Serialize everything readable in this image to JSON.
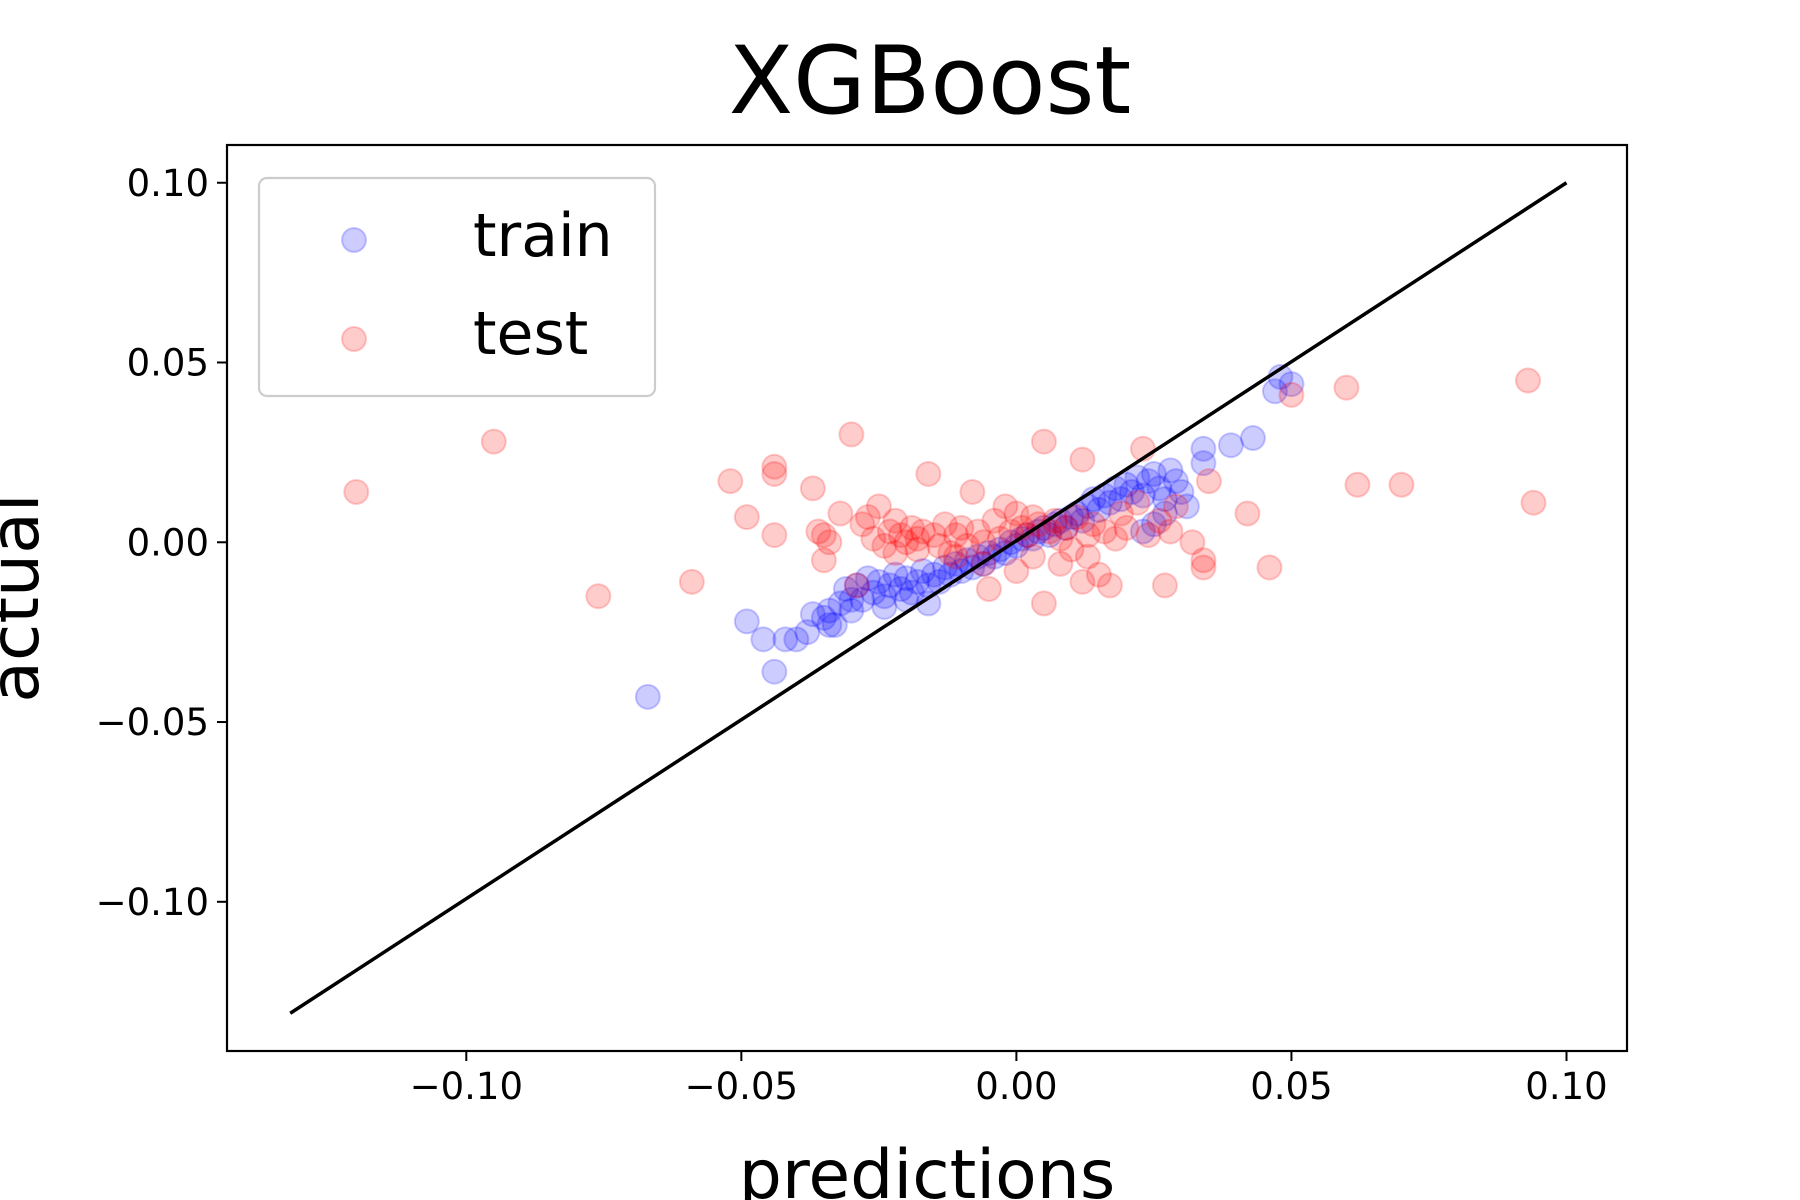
{
  "chart_data": {
    "type": "scatter",
    "title": "XGBoost",
    "xlabel": "predictions",
    "ylabel": "actual",
    "xlim": [
      -0.1435,
      0.111
    ],
    "ylim": [
      -0.1415,
      0.1105
    ],
    "xticks": [
      -0.1,
      -0.05,
      0.0,
      0.05,
      0.1
    ],
    "xtick_labels": [
      "−0.10",
      "−0.05",
      "0.00",
      "0.05",
      "0.10"
    ],
    "yticks": [
      -0.1,
      -0.05,
      0.0,
      0.05,
      0.1
    ],
    "ytick_labels": [
      "−0.10",
      "−0.05",
      "0.00",
      "0.05",
      "0.10"
    ],
    "grid": false,
    "legend_position": "upper-left",
    "reference_line": {
      "x": [
        -0.132,
        0.1
      ],
      "y": [
        -0.131,
        0.1
      ],
      "color": "#000000"
    },
    "series": [
      {
        "name": "train",
        "color": "#0000ff",
        "opacity": 0.2,
        "points": [
          [
            -0.067,
            -0.043
          ],
          [
            -0.049,
            -0.022
          ],
          [
            -0.044,
            -0.036
          ],
          [
            -0.046,
            -0.027
          ],
          [
            -0.042,
            -0.027
          ],
          [
            -0.04,
            -0.027
          ],
          [
            -0.038,
            -0.025
          ],
          [
            -0.037,
            -0.02
          ],
          [
            -0.035,
            -0.021
          ],
          [
            -0.034,
            -0.019
          ],
          [
            -0.033,
            -0.023
          ],
          [
            -0.032,
            -0.017
          ],
          [
            -0.031,
            -0.013
          ],
          [
            -0.03,
            -0.016
          ],
          [
            -0.029,
            -0.012
          ],
          [
            -0.028,
            -0.016
          ],
          [
            -0.027,
            -0.01
          ],
          [
            -0.026,
            -0.014
          ],
          [
            -0.025,
            -0.011
          ],
          [
            -0.024,
            -0.015
          ],
          [
            -0.023,
            -0.012
          ],
          [
            -0.022,
            -0.009
          ],
          [
            -0.021,
            -0.013
          ],
          [
            -0.02,
            -0.01
          ],
          [
            -0.019,
            -0.014
          ],
          [
            -0.018,
            -0.011
          ],
          [
            -0.017,
            -0.008
          ],
          [
            -0.016,
            -0.012
          ],
          [
            -0.015,
            -0.009
          ],
          [
            -0.014,
            -0.011
          ],
          [
            -0.013,
            -0.007
          ],
          [
            -0.012,
            -0.009
          ],
          [
            -0.011,
            -0.006
          ],
          [
            -0.01,
            -0.008
          ],
          [
            -0.009,
            -0.005
          ],
          [
            -0.008,
            -0.007
          ],
          [
            -0.007,
            -0.004
          ],
          [
            -0.006,
            -0.006
          ],
          [
            -0.005,
            -0.003
          ],
          [
            -0.004,
            -0.004
          ],
          [
            -0.003,
            -0.002
          ],
          [
            -0.002,
            -0.003
          ],
          [
            -0.001,
            0.0
          ],
          [
            0.0,
            -0.001
          ],
          [
            0.001,
            0.001
          ],
          [
            0.002,
            0.002
          ],
          [
            0.003,
            0.001
          ],
          [
            0.004,
            0.003
          ],
          [
            0.005,
            0.004
          ],
          [
            0.006,
            0.002
          ],
          [
            0.007,
            0.005
          ],
          [
            0.008,
            0.006
          ],
          [
            0.009,
            0.004
          ],
          [
            0.01,
            0.007
          ],
          [
            0.011,
            0.008
          ],
          [
            0.012,
            0.006
          ],
          [
            0.013,
            0.01
          ],
          [
            0.014,
            0.012
          ],
          [
            0.015,
            0.009
          ],
          [
            0.016,
            0.013
          ],
          [
            0.017,
            0.011
          ],
          [
            0.018,
            0.015
          ],
          [
            0.019,
            0.012
          ],
          [
            0.02,
            0.016
          ],
          [
            0.021,
            0.014
          ],
          [
            0.022,
            0.018
          ],
          [
            0.023,
            0.013
          ],
          [
            0.024,
            0.017
          ],
          [
            0.025,
            0.019
          ],
          [
            0.026,
            0.015
          ],
          [
            0.027,
            0.012
          ],
          [
            0.028,
            0.02
          ],
          [
            0.029,
            0.017
          ],
          [
            0.03,
            0.014
          ],
          [
            0.031,
            0.01
          ],
          [
            0.034,
            0.022
          ],
          [
            0.034,
            0.026
          ],
          [
            0.039,
            0.027
          ],
          [
            0.043,
            0.029
          ],
          [
            0.047,
            0.042
          ],
          [
            0.048,
            0.046
          ],
          [
            0.05,
            0.044
          ],
          [
            0.027,
            0.008
          ],
          [
            0.025,
            0.005
          ],
          [
            0.023,
            0.003
          ],
          [
            -0.02,
            -0.016
          ],
          [
            -0.024,
            -0.018
          ],
          [
            -0.016,
            -0.017
          ],
          [
            -0.03,
            -0.019
          ],
          [
            -0.034,
            -0.023
          ]
        ]
      },
      {
        "name": "test",
        "color": "#ff0000",
        "opacity": 0.2,
        "points": [
          [
            -0.12,
            0.014
          ],
          [
            -0.095,
            0.028
          ],
          [
            -0.076,
            -0.015
          ],
          [
            -0.059,
            -0.011
          ],
          [
            -0.052,
            0.017
          ],
          [
            -0.049,
            0.007
          ],
          [
            -0.044,
            0.021
          ],
          [
            -0.044,
            0.019
          ],
          [
            -0.044,
            0.002
          ],
          [
            -0.037,
            0.015
          ],
          [
            -0.036,
            0.003
          ],
          [
            -0.035,
            0.002
          ],
          [
            -0.035,
            -0.005
          ],
          [
            -0.034,
            0.0
          ],
          [
            -0.032,
            0.008
          ],
          [
            -0.03,
            0.03
          ],
          [
            -0.029,
            -0.012
          ],
          [
            -0.028,
            0.005
          ],
          [
            -0.027,
            0.007
          ],
          [
            -0.026,
            0.001
          ],
          [
            -0.025,
            0.01
          ],
          [
            -0.024,
            -0.001
          ],
          [
            -0.023,
            0.003
          ],
          [
            -0.022,
            -0.003
          ],
          [
            -0.021,
            0.002
          ],
          [
            -0.02,
            0.0
          ],
          [
            -0.019,
            0.004
          ],
          [
            -0.018,
            -0.002
          ],
          [
            -0.017,
            0.003
          ],
          [
            -0.016,
            0.019
          ],
          [
            -0.015,
            0.002
          ],
          [
            -0.014,
            -0.001
          ],
          [
            -0.013,
            0.005
          ],
          [
            -0.012,
            -0.003
          ],
          [
            -0.011,
            0.002
          ],
          [
            -0.01,
            0.004
          ],
          [
            -0.009,
            -0.001
          ],
          [
            -0.008,
            0.014
          ],
          [
            -0.007,
            0.003
          ],
          [
            -0.006,
            0.0
          ],
          [
            -0.005,
            -0.013
          ],
          [
            -0.004,
            0.006
          ],
          [
            -0.003,
            0.001
          ],
          [
            -0.002,
            0.01
          ],
          [
            -0.001,
            0.003
          ],
          [
            0.0,
            -0.008
          ],
          [
            0.001,
            0.004
          ],
          [
            0.002,
            0.002
          ],
          [
            0.003,
            0.007
          ],
          [
            0.004,
            0.005
          ],
          [
            0.005,
            0.028
          ],
          [
            0.005,
            -0.017
          ],
          [
            0.006,
            0.003
          ],
          [
            0.007,
            0.006
          ],
          [
            0.008,
            0.001
          ],
          [
            0.009,
            0.004
          ],
          [
            0.01,
            -0.002
          ],
          [
            0.011,
            0.007
          ],
          [
            0.012,
            0.023
          ],
          [
            0.012,
            -0.011
          ],
          [
            0.013,
            0.002
          ],
          [
            0.014,
            0.005
          ],
          [
            0.015,
            -0.009
          ],
          [
            0.016,
            0.003
          ],
          [
            0.017,
            -0.012
          ],
          [
            0.018,
            0.001
          ],
          [
            0.019,
            0.008
          ],
          [
            0.02,
            0.004
          ],
          [
            0.022,
            0.011
          ],
          [
            0.023,
            0.026
          ],
          [
            0.024,
            0.002
          ],
          [
            0.026,
            0.006
          ],
          [
            0.027,
            -0.012
          ],
          [
            0.028,
            0.003
          ],
          [
            0.029,
            0.01
          ],
          [
            0.032,
            0.0
          ],
          [
            0.034,
            -0.005
          ],
          [
            0.034,
            -0.007
          ],
          [
            0.035,
            0.017
          ],
          [
            0.042,
            0.008
          ],
          [
            0.046,
            -0.007
          ],
          [
            0.05,
            0.041
          ],
          [
            0.06,
            0.043
          ],
          [
            0.062,
            0.016
          ],
          [
            0.07,
            0.016
          ],
          [
            0.093,
            0.045
          ],
          [
            0.094,
            0.011
          ],
          [
            -0.011,
            -0.004
          ],
          [
            -0.006,
            -0.006
          ],
          [
            0.003,
            -0.004
          ],
          [
            0.008,
            -0.006
          ],
          [
            0.013,
            -0.004
          ],
          [
            -0.018,
            0.001
          ],
          [
            -0.022,
            0.006
          ],
          [
            0.0,
            0.008
          ]
        ]
      }
    ]
  }
}
